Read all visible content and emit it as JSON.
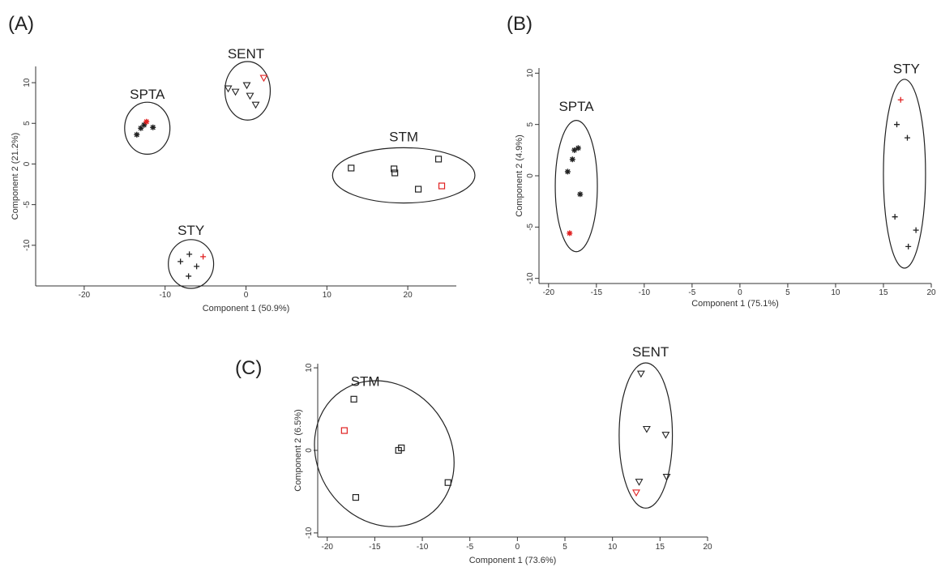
{
  "chart_data": [
    {
      "type": "scatter",
      "panel_label": "(A)",
      "xlabel": "Component 1 (50.9%)",
      "ylabel": "Component 2 (21.2%)",
      "xlim": [
        -26,
        26
      ],
      "ylim": [
        -15,
        12
      ],
      "xticks": [
        -20,
        -10,
        0,
        10,
        20
      ],
      "yticks": [
        -10,
        -5,
        0,
        5,
        10
      ],
      "series": [
        {
          "name": "SPTA",
          "marker": "asterisk",
          "points": [
            [
              -13.5,
              3.6
            ],
            [
              -13,
              4.4
            ],
            [
              -12.6,
              4.8
            ],
            [
              -12.3,
              5.2
            ],
            [
              -11.5,
              4.5
            ]
          ],
          "highlight": [
            3
          ]
        },
        {
          "name": "SENT",
          "marker": "triangle",
          "points": [
            [
              -2.2,
              9.3
            ],
            [
              -1.3,
              8.9
            ],
            [
              0.1,
              9.7
            ],
            [
              0.5,
              8.4
            ],
            [
              1.2,
              7.3
            ],
            [
              2.2,
              10.6
            ]
          ],
          "highlight": [
            5
          ]
        },
        {
          "name": "STM",
          "marker": "square",
          "points": [
            [
              13,
              -0.5
            ],
            [
              18.3,
              -0.6
            ],
            [
              18.4,
              -1.1
            ],
            [
              21.3,
              -3.1
            ],
            [
              23.8,
              0.6
            ],
            [
              24.2,
              -2.7
            ]
          ],
          "highlight": [
            5
          ]
        },
        {
          "name": "STY",
          "marker": "plus",
          "points": [
            [
              -8.1,
              -12
            ],
            [
              -7,
              -11.1
            ],
            [
              -6.1,
              -12.6
            ],
            [
              -7.1,
              -13.8
            ],
            [
              -5.3,
              -11.4
            ]
          ],
          "highlight": [
            4
          ]
        }
      ],
      "labels": [
        "SENT",
        "SPTA",
        "STM",
        "STY"
      ]
    },
    {
      "type": "scatter",
      "panel_label": "(B)",
      "xlabel": "Component 1 (75.1%)",
      "ylabel": "Component 2 (4.9%)",
      "xlim": [
        -21,
        20
      ],
      "ylim": [
        -10.5,
        10.5
      ],
      "xticks": [
        -20,
        -15,
        -10,
        -5,
        0,
        5,
        10,
        15,
        20
      ],
      "yticks": [
        -10,
        -5,
        0,
        5,
        10
      ],
      "series": [
        {
          "name": "SPTA",
          "marker": "asterisk",
          "points": [
            [
              -17.3,
              2.5
            ],
            [
              -16.9,
              2.7
            ],
            [
              -17.5,
              1.6
            ],
            [
              -18,
              0.4
            ],
            [
              -16.7,
              -1.8
            ],
            [
              -17.8,
              -5.6
            ]
          ],
          "highlight": [
            5
          ]
        },
        {
          "name": "STY",
          "marker": "plus",
          "points": [
            [
              16.8,
              7.4
            ],
            [
              16.4,
              5.0
            ],
            [
              17.5,
              3.7
            ],
            [
              16.2,
              -4.0
            ],
            [
              18.4,
              -5.3
            ],
            [
              17.6,
              -6.9
            ]
          ],
          "highlight": [
            0
          ]
        }
      ],
      "labels": [
        "SPTA",
        "STY"
      ]
    },
    {
      "type": "scatter",
      "panel_label": "(C)",
      "xlabel": "Component 1 (73.6%)",
      "ylabel": "Component 2 (6.5%)",
      "xlim": [
        -21,
        20
      ],
      "ylim": [
        -10.5,
        10.5
      ],
      "xticks": [
        -20,
        -15,
        -10,
        -5,
        0,
        5,
        10,
        15,
        20
      ],
      "yticks": [
        -10,
        0,
        10
      ],
      "series": [
        {
          "name": "STM",
          "marker": "square",
          "points": [
            [
              -17.2,
              6.2
            ],
            [
              -18.2,
              2.4
            ],
            [
              -12.2,
              0.3
            ],
            [
              -12.5,
              0
            ],
            [
              -7.3,
              -3.9
            ],
            [
              -17,
              -5.7
            ]
          ],
          "highlight": [
            1
          ]
        },
        {
          "name": "SENT",
          "marker": "triangle",
          "points": [
            [
              13,
              9.3
            ],
            [
              13.6,
              2.6
            ],
            [
              15.6,
              1.9
            ],
            [
              15.7,
              -3.2
            ],
            [
              12.8,
              -3.8
            ],
            [
              12.5,
              -5.1
            ]
          ],
          "highlight": [
            5
          ]
        }
      ],
      "labels": [
        "STM",
        "SENT"
      ]
    }
  ]
}
